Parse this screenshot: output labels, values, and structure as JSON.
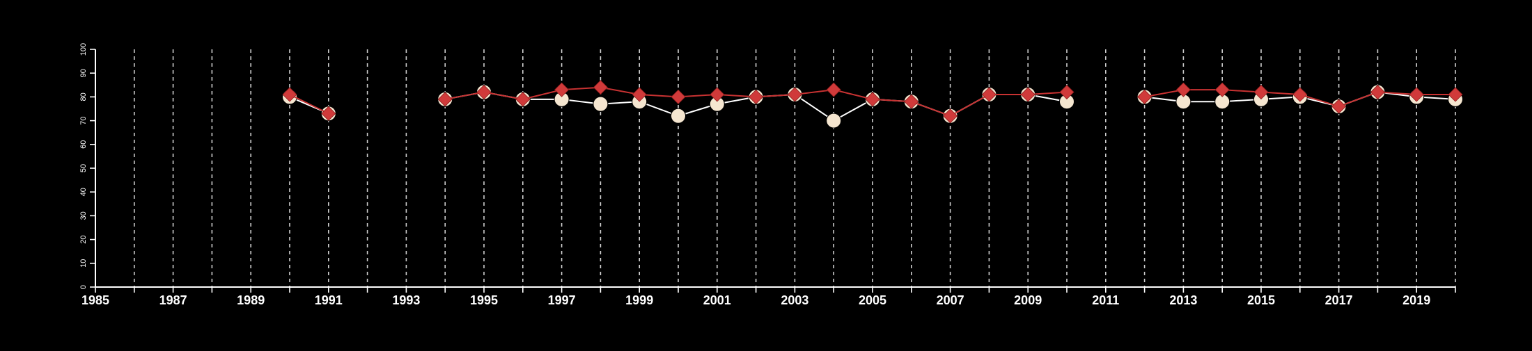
{
  "chart_data": {
    "type": "line",
    "title": "",
    "xlabel": "",
    "ylabel": "",
    "xlim": [
      1985,
      2020
    ],
    "ylim": [
      0,
      100
    ],
    "x_ticks": [
      1985,
      1987,
      1989,
      1991,
      1993,
      1995,
      1997,
      1999,
      2001,
      2003,
      2005,
      2007,
      2009,
      2011,
      2013,
      2015,
      2017,
      2019
    ],
    "y_ticks": [
      0,
      10,
      20,
      30,
      40,
      50,
      60,
      70,
      80,
      90,
      100
    ],
    "vertical_grid_years": [
      1986,
      1987,
      1988,
      1989,
      1990,
      1991,
      1992,
      1993,
      1994,
      1995,
      1996,
      1997,
      1998,
      1999,
      2000,
      2001,
      2002,
      2003,
      2004,
      2005,
      2006,
      2007,
      2008,
      2009,
      2010,
      2011,
      2012,
      2013,
      2014,
      2015,
      2016,
      2017,
      2018,
      2019,
      2020
    ],
    "grid": "vertical dashed",
    "legend": "none",
    "series": [
      {
        "marker": "circle",
        "color": "#f5e6d0",
        "line_color": "#ffffff",
        "points": [
          {
            "x": 1990,
            "y": 80
          },
          {
            "x": 1991,
            "y": 73
          },
          {
            "x": 1994,
            "y": 79
          },
          {
            "x": 1995,
            "y": 82
          },
          {
            "x": 1996,
            "y": 79
          },
          {
            "x": 1997,
            "y": 79
          },
          {
            "x": 1998,
            "y": 77
          },
          {
            "x": 1999,
            "y": 78
          },
          {
            "x": 2000,
            "y": 72
          },
          {
            "x": 2001,
            "y": 77
          },
          {
            "x": 2002,
            "y": 80
          },
          {
            "x": 2003,
            "y": 81
          },
          {
            "x": 2004,
            "y": 70
          },
          {
            "x": 2005,
            "y": 79
          },
          {
            "x": 2006,
            "y": 78
          },
          {
            "x": 2007,
            "y": 72
          },
          {
            "x": 2008,
            "y": 81
          },
          {
            "x": 2009,
            "y": 81
          },
          {
            "x": 2010,
            "y": 78
          },
          {
            "x": 2012,
            "y": 80
          },
          {
            "x": 2013,
            "y": 78
          },
          {
            "x": 2014,
            "y": 78
          },
          {
            "x": 2015,
            "y": 79
          },
          {
            "x": 2016,
            "y": 80
          },
          {
            "x": 2017,
            "y": 76
          },
          {
            "x": 2018,
            "y": 82
          },
          {
            "x": 2019,
            "y": 80
          },
          {
            "x": 2020,
            "y": 79
          }
        ]
      },
      {
        "marker": "diamond",
        "color": "#d03a3a",
        "line_color": "#c83232",
        "points": [
          {
            "x": 1990,
            "y": 81
          },
          {
            "x": 1991,
            "y": 73
          },
          {
            "x": 1994,
            "y": 79
          },
          {
            "x": 1995,
            "y": 82
          },
          {
            "x": 1996,
            "y": 79
          },
          {
            "x": 1997,
            "y": 83
          },
          {
            "x": 1998,
            "y": 84
          },
          {
            "x": 1999,
            "y": 81
          },
          {
            "x": 2000,
            "y": 80
          },
          {
            "x": 2001,
            "y": 81
          },
          {
            "x": 2002,
            "y": 80
          },
          {
            "x": 2003,
            "y": 81
          },
          {
            "x": 2004,
            "y": 83
          },
          {
            "x": 2005,
            "y": 79
          },
          {
            "x": 2006,
            "y": 78
          },
          {
            "x": 2007,
            "y": 72
          },
          {
            "x": 2008,
            "y": 81
          },
          {
            "x": 2009,
            "y": 81
          },
          {
            "x": 2010,
            "y": 82
          },
          {
            "x": 2012,
            "y": 80
          },
          {
            "x": 2013,
            "y": 83
          },
          {
            "x": 2014,
            "y": 83
          },
          {
            "x": 2015,
            "y": 82
          },
          {
            "x": 2016,
            "y": 81
          },
          {
            "x": 2017,
            "y": 76
          },
          {
            "x": 2018,
            "y": 82
          },
          {
            "x": 2019,
            "y": 81
          },
          {
            "x": 2020,
            "y": 81
          }
        ]
      }
    ]
  }
}
